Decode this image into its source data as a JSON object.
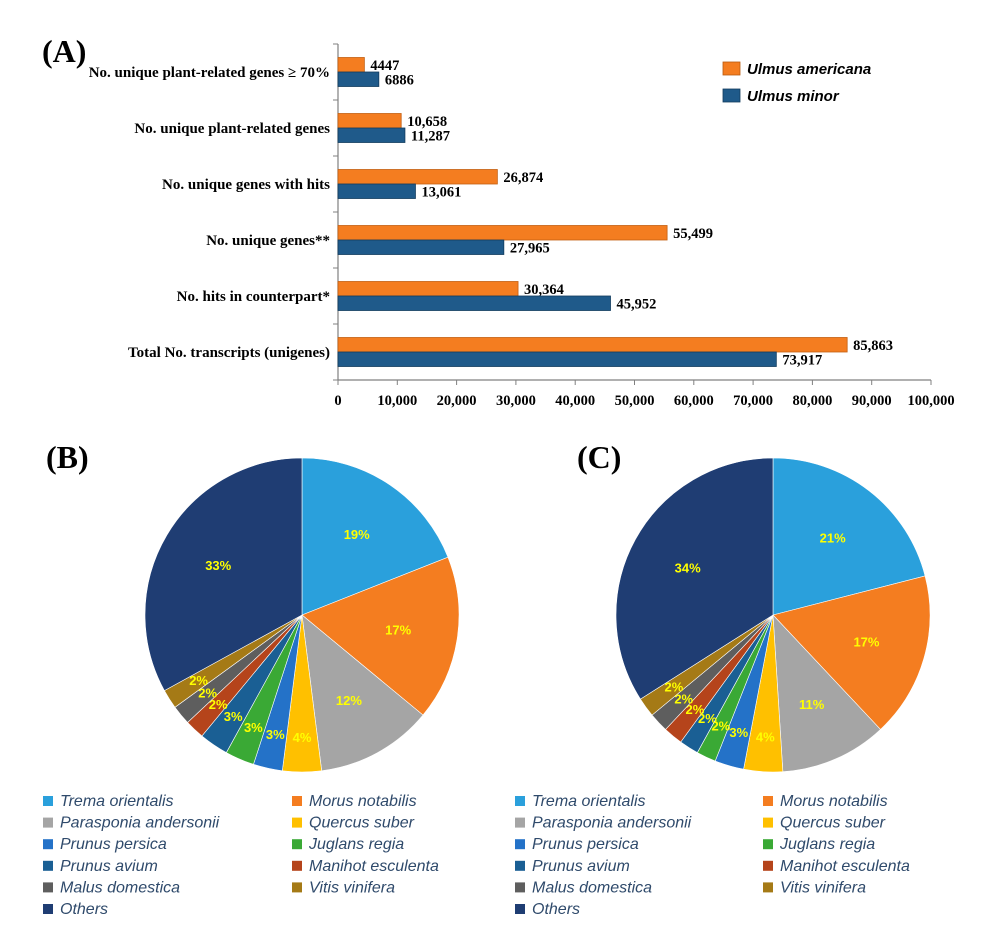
{
  "chart_data": [
    {
      "type": "bar",
      "orientation": "horizontal",
      "panel_label": "(A)",
      "categories": [
        "No. unique plant-related genes ≥ 70%",
        "No. unique plant-related genes",
        "No. unique genes with hits",
        "No. unique genes**",
        "No. hits in counterpart*",
        "Total No. transcripts (unigenes)"
      ],
      "series": [
        {
          "name": "Ulmus americana",
          "color": "#f47d20",
          "values": [
            4447,
            10658,
            26874,
            55499,
            30364,
            85863
          ],
          "labels": [
            "4447",
            "10,658",
            "26,874",
            "55,499",
            "30,364",
            "85,863"
          ]
        },
        {
          "name": "Ulmus minor",
          "color": "#1f5a8a",
          "values": [
            6886,
            11287,
            13061,
            27965,
            45952,
            73917
          ],
          "labels": [
            "6886",
            "11,287",
            "13,061",
            "27,965",
            "45,952",
            "73,917"
          ]
        }
      ],
      "xlim": [
        0,
        100000
      ],
      "xticks": [
        0,
        10000,
        20000,
        30000,
        40000,
        50000,
        60000,
        70000,
        80000,
        90000,
        100000
      ],
      "xtick_labels": [
        "0",
        "10,000",
        "20,000",
        "30,000",
        "40,000",
        "50,000",
        "60,000",
        "70,000",
        "80,000",
        "90,000",
        "100,000"
      ],
      "legend_position": "top-right"
    },
    {
      "type": "pie",
      "panel_label": "(B)",
      "categories": [
        "Trema orientalis",
        "Morus notabilis",
        "Parasponia andersonii",
        "Quercus suber",
        "Prunus persica",
        "Juglans regia",
        "Prunus avium",
        "Manihot esculenta",
        "Malus domestica",
        "Vitis vinifera",
        "Others"
      ],
      "values": [
        19,
        17,
        12,
        4,
        3,
        3,
        3,
        2,
        2,
        2,
        33
      ],
      "labels": [
        "19%",
        "17%",
        "12%",
        "4%",
        "3%",
        "3%",
        "3%",
        "2%",
        "2%",
        "2%",
        "33%"
      ]
    },
    {
      "type": "pie",
      "panel_label": "(C)",
      "categories": [
        "Trema orientalis",
        "Morus notabilis",
        "Parasponia andersonii",
        "Quercus suber",
        "Prunus persica",
        "Juglans regia",
        "Prunus avium",
        "Manihot esculenta",
        "Malus domestica",
        "Vitis vinifera",
        "Others"
      ],
      "values": [
        21,
        17,
        11,
        4,
        3,
        2,
        2,
        2,
        2,
        2,
        34
      ],
      "labels": [
        "21%",
        "17%",
        "11%",
        "4%",
        "3%",
        "2%",
        "2%",
        "2%",
        "2%",
        "2%",
        "34%"
      ]
    }
  ],
  "pie_colors": [
    "#2aa0dc",
    "#f47d20",
    "#a5a5a5",
    "#ffc000",
    "#2472c8",
    "#3aa935",
    "#1a5f94",
    "#b5441b",
    "#5e5e5e",
    "#a57a16",
    "#1f3d73"
  ],
  "legend_left": [
    "Trema orientalis",
    "Parasponia andersonii",
    "Prunus persica",
    "Prunus avium",
    "Malus domestica",
    "Others"
  ],
  "legend_right": [
    "Morus notabilis",
    "Quercus suber",
    "Juglans regia",
    "Manihot esculenta",
    "Vitis vinifera"
  ],
  "legend_left_colors": [
    "#2aa0dc",
    "#a5a5a5",
    "#2472c8",
    "#1a5f94",
    "#5e5e5e",
    "#1f3d73"
  ],
  "legend_right_colors": [
    "#f47d20",
    "#ffc000",
    "#3aa935",
    "#b5441b",
    "#a57a16"
  ]
}
